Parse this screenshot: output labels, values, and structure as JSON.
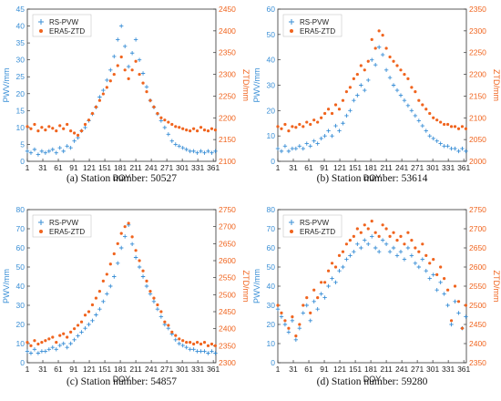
{
  "style": {
    "pwv_color": "#3a8fd6",
    "ztd_color": "#f0641e",
    "axis_color": "#333333"
  },
  "chart_data": [
    {
      "type": "scatter",
      "caption": "(a) Station number: 50527",
      "xlabel": "DOY",
      "ylabel_left": "PWV/mm",
      "ylabel_right": "ZTD/mm",
      "xlim": [
        1,
        366
      ],
      "xticks": [
        "1",
        "31",
        "61",
        "91",
        "121",
        "151",
        "181",
        "211",
        "241",
        "271",
        "301",
        "331",
        "361"
      ],
      "ylim_left": [
        0,
        45
      ],
      "yticks_left": [
        "0",
        "5",
        "10",
        "15",
        "20",
        "25",
        "30",
        "35",
        "40",
        "45"
      ],
      "ylim_right": [
        2100,
        2450
      ],
      "yticks_right": [
        "2100",
        "2150",
        "2200",
        "2250",
        "2300",
        "2350",
        "2400",
        "2450"
      ],
      "legend": "top-left",
      "series": [
        {
          "name": "RS-PVW",
          "axis": "left",
          "marker": "plus",
          "x": [
            1,
            8,
            15,
            22,
            29,
            36,
            43,
            50,
            57,
            64,
            71,
            78,
            85,
            92,
            99,
            106,
            113,
            120,
            127,
            134,
            141,
            148,
            155,
            162,
            169,
            176,
            183,
            190,
            197,
            204,
            211,
            218,
            225,
            232,
            239,
            246,
            253,
            260,
            267,
            274,
            281,
            288,
            295,
            302,
            309,
            316,
            323,
            330,
            337,
            344,
            351,
            358,
            365
          ],
          "y": [
            3,
            2.5,
            3.5,
            2,
            3,
            2.5,
            3,
            3.5,
            2.5,
            4,
            3,
            4.5,
            4,
            6,
            7,
            9,
            10,
            12,
            14,
            16,
            19,
            21,
            24,
            27,
            31,
            36,
            40,
            34,
            28,
            32,
            36,
            30,
            26,
            22,
            18,
            16,
            14,
            12,
            10,
            8,
            6,
            5,
            4.5,
            4,
            3.5,
            3,
            3,
            2.5,
            3,
            2.5,
            3,
            2.5,
            3
          ]
        },
        {
          "name": "ERA5-ZTD",
          "axis": "right",
          "marker": "dot",
          "x": [
            1,
            8,
            15,
            22,
            29,
            36,
            43,
            50,
            57,
            64,
            71,
            78,
            85,
            92,
            99,
            106,
            113,
            120,
            127,
            134,
            141,
            148,
            155,
            162,
            169,
            176,
            183,
            190,
            197,
            204,
            211,
            218,
            225,
            232,
            239,
            246,
            253,
            260,
            267,
            274,
            281,
            288,
            295,
            302,
            309,
            316,
            323,
            330,
            337,
            344,
            351,
            358,
            365
          ],
          "y": [
            2180,
            2175,
            2185,
            2170,
            2178,
            2172,
            2180,
            2176,
            2170,
            2182,
            2175,
            2185,
            2170,
            2165,
            2160,
            2170,
            2185,
            2195,
            2210,
            2225,
            2240,
            2255,
            2270,
            2285,
            2300,
            2320,
            2340,
            2310,
            2290,
            2310,
            2330,
            2300,
            2280,
            2260,
            2240,
            2225,
            2210,
            2200,
            2195,
            2190,
            2185,
            2180,
            2178,
            2175,
            2172,
            2170,
            2175,
            2170,
            2178,
            2172,
            2170,
            2175,
            2172
          ]
        }
      ]
    },
    {
      "type": "scatter",
      "caption": "(b) Station number: 53614",
      "xlabel": "DOY",
      "ylabel_left": "PWV/mm",
      "ylabel_right": "ZTD/mm",
      "xlim": [
        1,
        366
      ],
      "xticks": [
        "1",
        "31",
        "61",
        "91",
        "121",
        "151",
        "181",
        "211",
        "241",
        "271",
        "301",
        "331",
        "361"
      ],
      "ylim_left": [
        0,
        60
      ],
      "yticks_left": [
        "0",
        "10",
        "20",
        "30",
        "40",
        "50",
        "60"
      ],
      "ylim_right": [
        2000,
        2350
      ],
      "yticks_right": [
        "2000",
        "2050",
        "2100",
        "2150",
        "2200",
        "2250",
        "2300",
        "2350"
      ],
      "legend": "top-left",
      "series": [
        {
          "name": "RS-PVW",
          "axis": "left",
          "marker": "plus",
          "x": [
            1,
            8,
            15,
            22,
            29,
            36,
            43,
            50,
            57,
            64,
            71,
            78,
            85,
            92,
            99,
            106,
            113,
            120,
            127,
            134,
            141,
            148,
            155,
            162,
            169,
            176,
            183,
            190,
            197,
            204,
            211,
            218,
            225,
            232,
            239,
            246,
            253,
            260,
            267,
            274,
            281,
            288,
            295,
            302,
            309,
            316,
            323,
            330,
            337,
            344,
            351,
            358,
            365
          ],
          "y": [
            5,
            4,
            6,
            4,
            5,
            5,
            6,
            5,
            7,
            6,
            8,
            7,
            9,
            10,
            12,
            10,
            14,
            12,
            15,
            18,
            20,
            24,
            26,
            30,
            28,
            32,
            40,
            38,
            45,
            42,
            36,
            33,
            30,
            28,
            26,
            24,
            22,
            20,
            18,
            16,
            14,
            12,
            10,
            9,
            8,
            7,
            6,
            6,
            5,
            5,
            4,
            5,
            4
          ]
        },
        {
          "name": "ERA5-ZTD",
          "axis": "right",
          "marker": "dot",
          "x": [
            1,
            8,
            15,
            22,
            29,
            36,
            43,
            50,
            57,
            64,
            71,
            78,
            85,
            92,
            99,
            106,
            113,
            120,
            127,
            134,
            141,
            148,
            155,
            162,
            169,
            176,
            183,
            190,
            197,
            204,
            211,
            218,
            225,
            232,
            239,
            246,
            253,
            260,
            267,
            274,
            281,
            288,
            295,
            302,
            309,
            316,
            323,
            330,
            337,
            344,
            351,
            358,
            365
          ],
          "y": [
            2080,
            2075,
            2085,
            2070,
            2080,
            2078,
            2085,
            2080,
            2090,
            2085,
            2095,
            2090,
            2100,
            2110,
            2120,
            2110,
            2130,
            2120,
            2140,
            2160,
            2170,
            2190,
            2200,
            2220,
            2210,
            2230,
            2280,
            2260,
            2300,
            2290,
            2260,
            2240,
            2230,
            2220,
            2210,
            2200,
            2190,
            2170,
            2160,
            2140,
            2130,
            2120,
            2110,
            2100,
            2095,
            2090,
            2085,
            2085,
            2080,
            2080,
            2075,
            2080,
            2075
          ]
        }
      ]
    },
    {
      "type": "scatter",
      "caption": "(c) Station number: 54857",
      "xlabel": "DOY",
      "ylabel_left": "PWV/mm",
      "ylabel_right": "ZTD/mm",
      "xlim": [
        1,
        366
      ],
      "xticks": [
        "1",
        "31",
        "61",
        "91",
        "121",
        "151",
        "181",
        "211",
        "241",
        "271",
        "301",
        "331",
        "361"
      ],
      "ylim_left": [
        0,
        80
      ],
      "yticks_left": [
        "0",
        "10",
        "20",
        "30",
        "40",
        "50",
        "60",
        "70",
        "80"
      ],
      "ylim_right": [
        2300,
        2750
      ],
      "yticks_right": [
        "2300",
        "2350",
        "2400",
        "2450",
        "2500",
        "2550",
        "2600",
        "2650",
        "2700",
        "2750"
      ],
      "legend": "top-left",
      "series": [
        {
          "name": "RS-PVW",
          "axis": "left",
          "marker": "plus",
          "x": [
            1,
            8,
            15,
            22,
            29,
            36,
            43,
            50,
            57,
            64,
            71,
            78,
            85,
            92,
            99,
            106,
            113,
            120,
            127,
            134,
            141,
            148,
            155,
            162,
            169,
            176,
            183,
            190,
            197,
            204,
            211,
            218,
            225,
            232,
            239,
            246,
            253,
            260,
            267,
            274,
            281,
            288,
            295,
            302,
            309,
            316,
            323,
            330,
            337,
            344,
            351,
            358,
            365
          ],
          "y": [
            6,
            5,
            7,
            5,
            6,
            6,
            7,
            8,
            7,
            9,
            10,
            8,
            10,
            12,
            14,
            16,
            18,
            20,
            22,
            25,
            28,
            32,
            36,
            40,
            45,
            52,
            60,
            66,
            72,
            62,
            55,
            50,
            45,
            40,
            36,
            32,
            28,
            24,
            20,
            18,
            15,
            12,
            10,
            9,
            8,
            7,
            7,
            6,
            6,
            6,
            5,
            6,
            5
          ]
        },
        {
          "name": "ERA5-ZTD",
          "axis": "right",
          "marker": "dot",
          "x": [
            1,
            8,
            15,
            22,
            29,
            36,
            43,
            50,
            57,
            64,
            71,
            78,
            85,
            92,
            99,
            106,
            113,
            120,
            127,
            134,
            141,
            148,
            155,
            162,
            169,
            176,
            183,
            190,
            197,
            204,
            211,
            218,
            225,
            232,
            239,
            246,
            253,
            260,
            267,
            274,
            281,
            288,
            295,
            302,
            309,
            316,
            323,
            330,
            337,
            344,
            351,
            358,
            365
          ],
          "y": [
            2360,
            2350,
            2365,
            2355,
            2360,
            2365,
            2370,
            2375,
            2360,
            2380,
            2385,
            2375,
            2390,
            2400,
            2410,
            2420,
            2440,
            2450,
            2470,
            2490,
            2510,
            2540,
            2560,
            2590,
            2620,
            2650,
            2680,
            2700,
            2710,
            2670,
            2630,
            2600,
            2570,
            2540,
            2510,
            2490,
            2470,
            2450,
            2420,
            2410,
            2390,
            2380,
            2370,
            2365,
            2360,
            2360,
            2355,
            2360,
            2355,
            2360,
            2350,
            2355,
            2350
          ]
        }
      ]
    },
    {
      "type": "scatter",
      "caption": "(d) Station number: 59280",
      "xlabel": "DOY",
      "ylabel_left": "PWV/mm",
      "ylabel_right": "ZTD/mm",
      "xlim": [
        1,
        366
      ],
      "xticks": [
        "1",
        "31",
        "61",
        "91",
        "121",
        "151",
        "181",
        "211",
        "241",
        "271",
        "301",
        "331",
        "361"
      ],
      "ylim_left": [
        0,
        80
      ],
      "yticks_left": [
        "0",
        "10",
        "20",
        "30",
        "40",
        "50",
        "60",
        "70",
        "80"
      ],
      "ylim_right": [
        2350,
        2750
      ],
      "yticks_right": [
        "2350",
        "2400",
        "2450",
        "2500",
        "2550",
        "2600",
        "2650",
        "2700",
        "2750"
      ],
      "legend": "top-left",
      "series": [
        {
          "name": "RS-PVW",
          "axis": "left",
          "marker": "plus",
          "x": [
            1,
            8,
            15,
            22,
            29,
            36,
            43,
            50,
            57,
            64,
            71,
            78,
            85,
            92,
            99,
            106,
            113,
            120,
            127,
            134,
            141,
            148,
            155,
            162,
            169,
            176,
            183,
            190,
            197,
            204,
            211,
            218,
            225,
            232,
            239,
            246,
            253,
            260,
            267,
            274,
            281,
            288,
            295,
            302,
            309,
            316,
            323,
            330,
            337,
            344,
            351,
            358,
            365
          ],
          "y": [
            28,
            24,
            20,
            16,
            22,
            12,
            18,
            26,
            30,
            22,
            32,
            28,
            36,
            34,
            40,
            44,
            42,
            48,
            50,
            54,
            56,
            58,
            62,
            60,
            64,
            62,
            66,
            60,
            58,
            64,
            62,
            58,
            60,
            56,
            58,
            54,
            60,
            56,
            52,
            50,
            54,
            48,
            44,
            46,
            38,
            42,
            36,
            30,
            20,
            32,
            26,
            18,
            24
          ]
        },
        {
          "name": "ERA5-ZTD",
          "axis": "right",
          "marker": "dot",
          "x": [
            1,
            8,
            15,
            22,
            29,
            36,
            43,
            50,
            57,
            64,
            71,
            78,
            85,
            92,
            99,
            106,
            113,
            120,
            127,
            134,
            141,
            148,
            155,
            162,
            169,
            176,
            183,
            190,
            197,
            204,
            211,
            218,
            225,
            232,
            239,
            246,
            253,
            260,
            267,
            274,
            281,
            288,
            295,
            302,
            309,
            316,
            323,
            330,
            337,
            344,
            351,
            358,
            365
          ],
          "y": [
            2500,
            2480,
            2460,
            2440,
            2470,
            2420,
            2450,
            2500,
            2520,
            2480,
            2540,
            2520,
            2560,
            2560,
            2590,
            2610,
            2600,
            2630,
            2640,
            2660,
            2670,
            2680,
            2700,
            2690,
            2710,
            2700,
            2720,
            2690,
            2680,
            2710,
            2700,
            2680,
            2690,
            2670,
            2680,
            2660,
            2690,
            2670,
            2650,
            2640,
            2660,
            2630,
            2610,
            2620,
            2580,
            2600,
            2570,
            2540,
            2460,
            2550,
            2510,
            2440,
            2500
          ]
        }
      ]
    }
  ]
}
